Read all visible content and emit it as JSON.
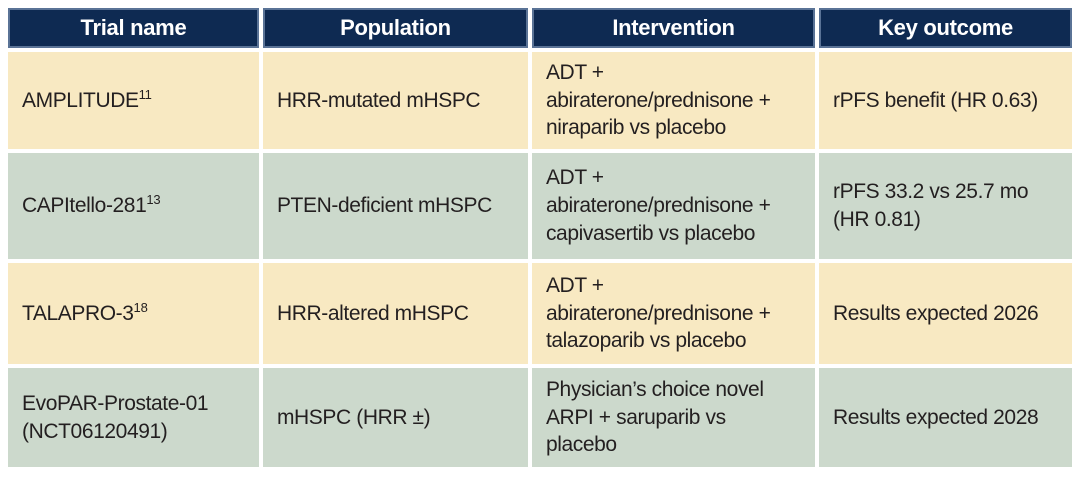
{
  "table": {
    "headers": {
      "trial": "Trial name",
      "population": "Population",
      "intervention": "Intervention",
      "outcome": "Key outcome"
    },
    "rows": [
      {
        "trial": "AMPLITUDE",
        "ref": "11",
        "population": "HRR-mutated mHSPC",
        "intervention": "ADT +\nabiraterone/prednisone +\nniraparib vs placebo",
        "outcome": "rPFS benefit (HR 0.63)"
      },
      {
        "trial": "CAPItello-281",
        "ref": "13",
        "population": "PTEN-deficient mHSPC",
        "intervention": "ADT +\nabiraterone/prednisone +\ncapivasertib vs placebo",
        "outcome": "rPFS 33.2 vs 25.7 mo\n(HR 0.81)"
      },
      {
        "trial": "TALAPRO-3",
        "ref": "18",
        "population": "HRR-altered mHSPC",
        "intervention": "ADT +\nabiraterone/prednisone +\ntalazoparib vs placebo",
        "outcome": "Results expected 2026"
      },
      {
        "trial": "EvoPAR-Prostate-01 (NCT06120491)",
        "ref": "",
        "population": "mHSPC (HRR ±)",
        "intervention": "Physician’s choice novel\nARPI + saruparib vs\nplacebo",
        "outcome": "Results expected 2028"
      }
    ],
    "colors": {
      "header_bg": "#0e2a52",
      "header_border": "#5a7396",
      "header_text": "#ffffff",
      "row_cream": "#f8e9c2",
      "row_sage": "#ccd9cc",
      "body_text": "#231f20",
      "gutter": "#ffffff"
    }
  }
}
